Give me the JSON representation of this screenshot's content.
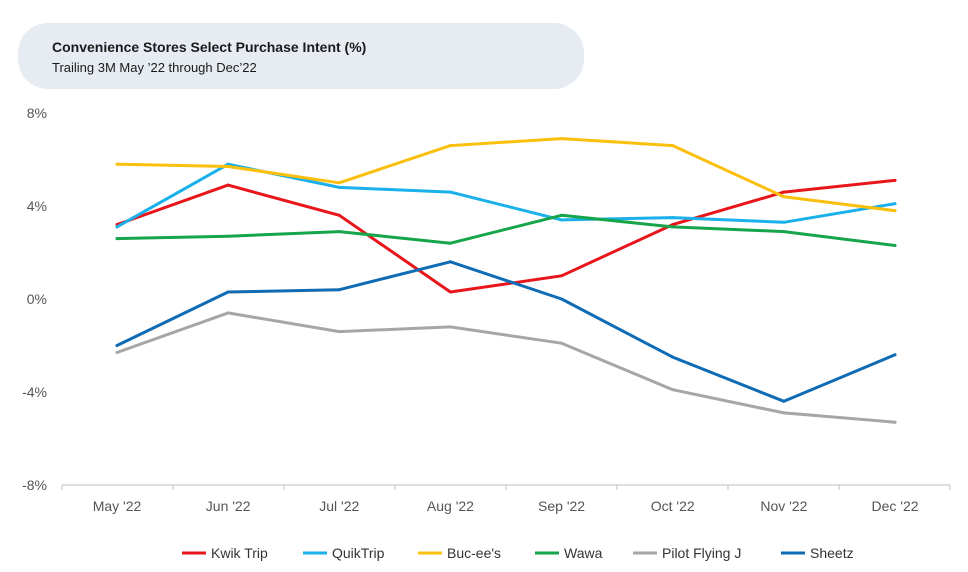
{
  "chart_data": {
    "type": "line",
    "title": "Convenience Stores Select Purchase Intent (%)",
    "subtitle": "Trailing 3M May ’22 through Dec’22",
    "categories": [
      "May '22",
      "Jun '22",
      "Jul '22",
      "Aug '22",
      "Sep '22",
      "Oct '22",
      "Nov '22",
      "Dec '22"
    ],
    "ylim": [
      -8,
      8
    ],
    "yticks": [
      8,
      4,
      0,
      -4,
      -8
    ],
    "ytick_labels": [
      "8%",
      "4%",
      "0%",
      "-4%",
      "-8%"
    ],
    "grid": false,
    "legend_position": "bottom",
    "series": [
      {
        "name": "Kwik Trip",
        "color": "#e8161b",
        "values": [
          3.2,
          4.9,
          3.6,
          0.3,
          1.0,
          3.2,
          4.6,
          5.1
        ]
      },
      {
        "name": "QuikTrip",
        "color": "#1ab0ea",
        "values": [
          3.1,
          5.8,
          4.8,
          4.6,
          3.4,
          3.5,
          3.3,
          4.1
        ]
      },
      {
        "name": "Buc-ee's",
        "color": "#fbc00e",
        "values": [
          5.8,
          5.7,
          5.0,
          6.6,
          6.9,
          6.6,
          4.4,
          3.8
        ]
      },
      {
        "name": "Wawa",
        "color": "#16a54a",
        "values": [
          2.6,
          2.7,
          2.9,
          2.4,
          3.6,
          3.1,
          2.9,
          2.3
        ]
      },
      {
        "name": "Pilot Flying J",
        "color": "#a6a6a6",
        "values": [
          -2.3,
          -0.6,
          -1.4,
          -1.2,
          -1.9,
          -3.9,
          -4.9,
          -5.3
        ]
      },
      {
        "name": "Sheetz",
        "color": "#0f6bb4",
        "values": [
          -2.0,
          0.3,
          0.4,
          1.6,
          0.0,
          -2.5,
          -4.4,
          -2.4
        ]
      }
    ]
  }
}
